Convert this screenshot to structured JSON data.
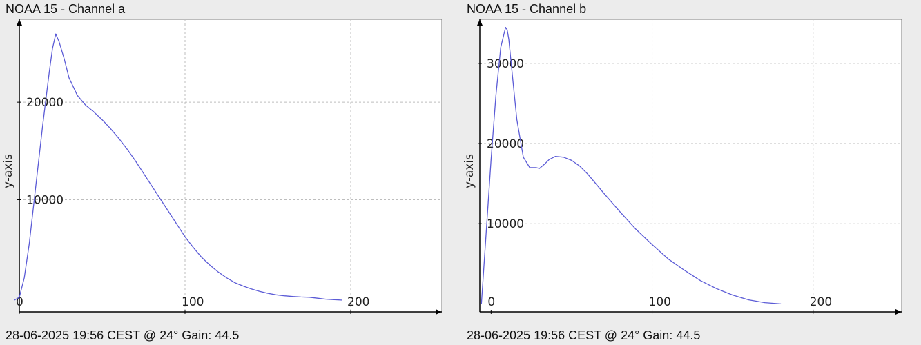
{
  "colors": {
    "background": "#ececec",
    "plot_background": "#ffffff",
    "line": "#5b5bd6",
    "grid": "#bdbdbd",
    "axis": "#000000"
  },
  "panels": [
    {
      "title": "NOAA 15 - Channel a",
      "footer": "28-06-2025 19:56 CEST @ 24° Gain: 44.5"
    },
    {
      "title": "NOAA 15 - Channel b",
      "footer": "28-06-2025 19:56 CEST @ 24° Gain: 44.5"
    }
  ],
  "chart_data": [
    {
      "type": "line",
      "title": "NOAA 15 - Channel a",
      "xlabel": "",
      "ylabel": "y-axis",
      "xlim": [
        0,
        255
      ],
      "ylim": [
        -1500,
        28500
      ],
      "xticks": [
        0,
        100,
        200
      ],
      "xtick_labels": [
        "0",
        "100",
        "200"
      ],
      "yticks": [
        10000,
        20000
      ],
      "ytick_labels": [
        "10000",
        "20000"
      ],
      "grid": true,
      "series": [
        {
          "x": [
            -3,
            0,
            3,
            6,
            10,
            14,
            18,
            20,
            22,
            24,
            27,
            30,
            35,
            40,
            45,
            50,
            55,
            60,
            65,
            70,
            75,
            80,
            85,
            90,
            95,
            100,
            105,
            110,
            115,
            120,
            125,
            130,
            135,
            140,
            145,
            150,
            155,
            160,
            165,
            170,
            175,
            180,
            185,
            190,
            195
          ],
          "y": [
            -300,
            0,
            2000,
            5500,
            11500,
            17500,
            23000,
            25500,
            27000,
            26200,
            24500,
            22500,
            20700,
            19700,
            19000,
            18200,
            17300,
            16300,
            15200,
            14000,
            12700,
            11400,
            10100,
            8800,
            7500,
            6200,
            5100,
            4100,
            3300,
            2600,
            2000,
            1500,
            1150,
            850,
            600,
            400,
            250,
            150,
            80,
            30,
            0,
            -100,
            -200,
            -250,
            -300
          ]
        }
      ]
    },
    {
      "type": "line",
      "title": "NOAA 15 - Channel b",
      "xlabel": "",
      "ylabel": "y-axis",
      "xlim": [
        -7,
        255
      ],
      "ylim": [
        -1000,
        35500
      ],
      "xticks": [
        0,
        100,
        200
      ],
      "xtick_labels": [
        "0",
        "100",
        "200"
      ],
      "yticks": [
        10000,
        20000,
        30000
      ],
      "ytick_labels": [
        "10000",
        "20000",
        "30000"
      ],
      "grid": true,
      "series": [
        {
          "x": [
            -6,
            -3,
            0,
            3,
            6,
            9,
            10,
            11,
            13,
            16,
            20,
            24,
            28,
            30,
            33,
            36,
            40,
            45,
            50,
            55,
            60,
            65,
            70,
            80,
            90,
            100,
            110,
            120,
            130,
            140,
            150,
            160,
            170,
            180
          ],
          "y": [
            0,
            9000,
            18000,
            26000,
            32000,
            34500,
            34200,
            33000,
            29000,
            23000,
            18300,
            17000,
            17000,
            16900,
            17400,
            18000,
            18400,
            18300,
            17900,
            17200,
            16200,
            15000,
            13800,
            11500,
            9300,
            7400,
            5600,
            4200,
            2900,
            1900,
            1100,
            500,
            150,
            0
          ]
        }
      ]
    }
  ]
}
